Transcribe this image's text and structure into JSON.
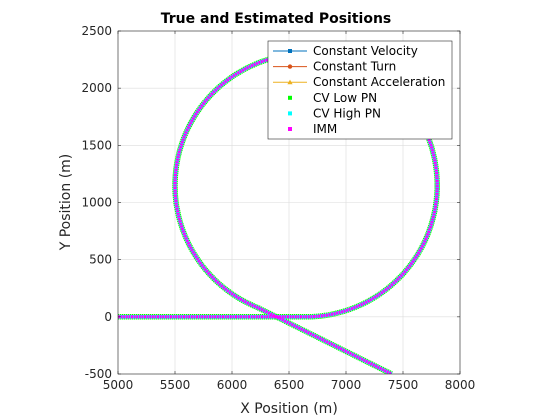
{
  "chart_data": {
    "type": "line",
    "title": "True and Estimated Positions",
    "xlabel": "X Position (m)",
    "ylabel": "Y Position (m)",
    "xlim": [
      5000,
      8000
    ],
    "ylim": [
      -500,
      2500
    ],
    "xticks": [
      5000,
      5500,
      6000,
      6500,
      7000,
      7500,
      8000
    ],
    "yticks": [
      -500,
      0,
      500,
      1000,
      1500,
      2000,
      2500
    ],
    "grid": true,
    "legend_position": "top-right",
    "trajectory": {
      "straight_start": [
        5000,
        0
      ],
      "straight_end": [
        6650,
        0
      ],
      "circle_center": [
        6650,
        1150
      ],
      "circle_radius": 1150,
      "final_leg_end": [
        7400,
        -500
      ]
    },
    "series": [
      {
        "name": "Constant Velocity",
        "color": "#0072bd",
        "marker": "square",
        "style": "line"
      },
      {
        "name": "Constant Turn",
        "color": "#d95319",
        "marker": "circle",
        "style": "line"
      },
      {
        "name": "Constant Acceleration",
        "color": "#edb120",
        "marker": "triangle",
        "style": "line"
      },
      {
        "name": "CV Low PN",
        "color": "#00ff00",
        "marker": "dot",
        "style": "markers"
      },
      {
        "name": "CV High PN",
        "color": "#00ffff",
        "marker": "dot",
        "style": "markers"
      },
      {
        "name": "IMM",
        "color": "#ff00ff",
        "marker": "dot",
        "style": "markers"
      }
    ]
  }
}
